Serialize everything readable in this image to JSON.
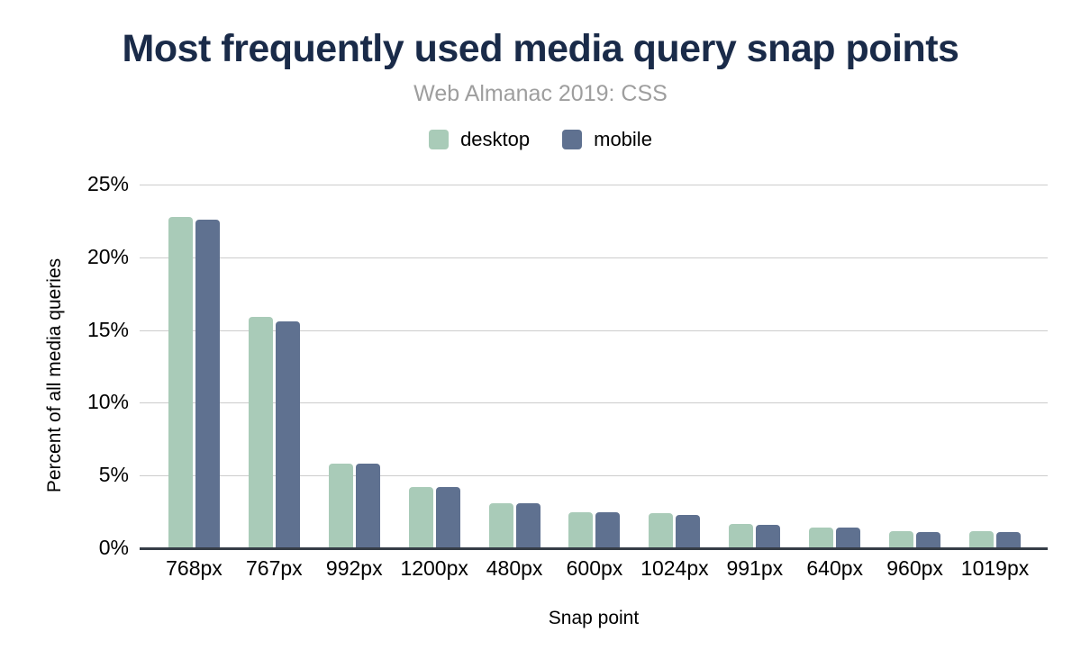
{
  "chart": {
    "title": "Most frequently used media query snap points",
    "subtitle": "Web Almanac 2019: CSS",
    "x_axis_label": "Snap point",
    "y_axis_label": "Percent of all media queries"
  },
  "colors": {
    "title": "#1a2b49",
    "subtitle": "#9e9e9e",
    "desktop_bar": "#a9cbb8",
    "mobile_bar": "#5f7190",
    "gridline": "#cccccc",
    "axis_line": "#363d47"
  },
  "chart_data": {
    "type": "bar",
    "title": "Most frequently used media query snap points",
    "subtitle": "Web Almanac 2019: CSS",
    "xlabel": "Snap point",
    "ylabel": "Percent of all media queries",
    "categories": [
      "768px",
      "767px",
      "992px",
      "1200px",
      "480px",
      "600px",
      "1024px",
      "991px",
      "640px",
      "960px",
      "1019px"
    ],
    "series": [
      {
        "name": "desktop",
        "color": "#a9cbb8",
        "values": [
          22.8,
          15.9,
          5.8,
          4.2,
          3.1,
          2.5,
          2.4,
          1.7,
          1.4,
          1.2,
          1.2
        ]
      },
      {
        "name": "mobile",
        "color": "#5f7190",
        "values": [
          22.6,
          15.6,
          5.8,
          4.2,
          3.1,
          2.5,
          2.3,
          1.6,
          1.4,
          1.1,
          1.1
        ]
      }
    ],
    "ylim": [
      0,
      25
    ],
    "ytick_values": [
      0,
      5,
      10,
      15,
      20,
      25
    ],
    "ytick_labels": [
      "0%",
      "5%",
      "10%",
      "15%",
      "20%",
      "25%"
    ],
    "grid": true,
    "legend_position": "top"
  }
}
